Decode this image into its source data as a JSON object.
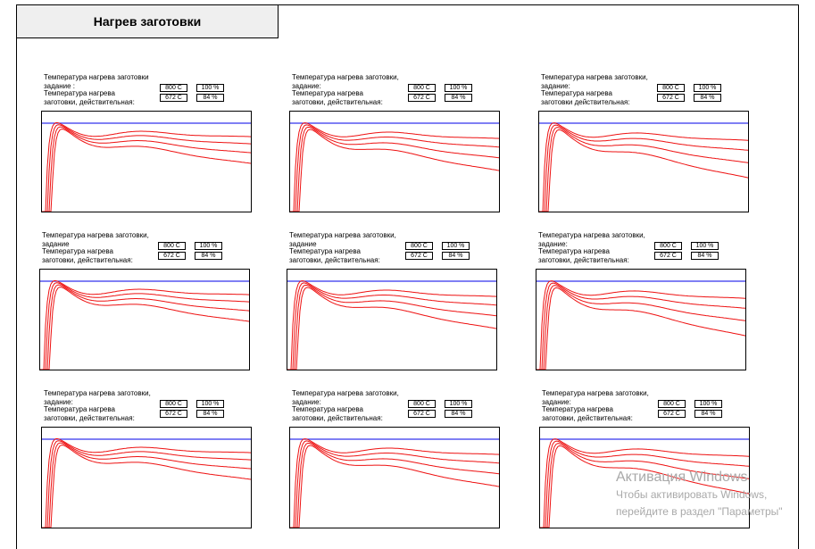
{
  "screen": {
    "title": "Нагрев заготовки"
  },
  "panels": [
    {
      "setpoint_label_line1": "Температура нагрева заготовки",
      "setpoint_label_line2": "задание :",
      "actual_label_line1": "Температура нагрева",
      "actual_label_line2": "заготовки, действительная:",
      "setpoint_value": "800 C",
      "setpoint_percent": "100 %",
      "actual_value": "672 C",
      "actual_percent": "84 %"
    },
    {
      "setpoint_label_line1": "Температура нагрева заготовки,",
      "setpoint_label_line2": "задание:",
      "actual_label_line1": "Температура нагрева",
      "actual_label_line2": "заготовки, действительная:",
      "setpoint_value": "800 C",
      "setpoint_percent": "100 %",
      "actual_value": "672 C",
      "actual_percent": "84 %"
    },
    {
      "setpoint_label_line1": "Температура нагрева заготовки,",
      "setpoint_label_line2": "задание:",
      "actual_label_line1": "Температура нагрева",
      "actual_label_line2": "заготовки  действительная:",
      "setpoint_value": "800 C",
      "setpoint_percent": "100 %",
      "actual_value": "672 C",
      "actual_percent": "84 %"
    },
    {
      "setpoint_label_line1": "Температура нагрева заготовки,",
      "setpoint_label_line2": "задание",
      "actual_label_line1": "Температура нагрева",
      "actual_label_line2": "заготовки, действительная:",
      "setpoint_value": "800 C",
      "setpoint_percent": "100 %",
      "actual_value": "672 C",
      "actual_percent": "84 %"
    },
    {
      "setpoint_label_line1": "Температура нагрева заготовки,",
      "setpoint_label_line2": "задание",
      "actual_label_line1": "Температура нагрева",
      "actual_label_line2": "заготовки, действительная:",
      "setpoint_value": "800 C",
      "setpoint_percent": "100 %",
      "actual_value": "672 C",
      "actual_percent": "84 %"
    },
    {
      "setpoint_label_line1": "Температура нагрева заготовки,",
      "setpoint_label_line2": "задание:",
      "actual_label_line1": "Температура нагрева",
      "actual_label_line2": "заготовки, действительная:",
      "setpoint_value": "800 C",
      "setpoint_percent": "100 %",
      "actual_value": "672 C",
      "actual_percent": "84 %"
    },
    {
      "setpoint_label_line1": "Температура нагрева заготовки,",
      "setpoint_label_line2": "задание:",
      "actual_label_line1": "Температура нагрева",
      "actual_label_line2": "заготовки, действительная:",
      "setpoint_value": "800 C",
      "setpoint_percent": "100 %",
      "actual_value": "672 C",
      "actual_percent": "84 %"
    },
    {
      "setpoint_label_line1": "Температура нагрева заготовки,",
      "setpoint_label_line2": "задание:",
      "actual_label_line1": "Температура нагрева",
      "actual_label_line2": "заготовки, действительная:",
      "setpoint_value": "800 C",
      "setpoint_percent": "100 %",
      "actual_value": "672 C",
      "actual_percent": "84 %"
    },
    {
      "setpoint_label_line1": "Температура нагрева заготовки,",
      "setpoint_label_line2": "задание:",
      "actual_label_line1": "Температура нагрева",
      "actual_label_line2": "заготовки, действительная:",
      "setpoint_value": "800 C",
      "setpoint_percent": "100 %",
      "actual_value": "672 C",
      "actual_percent": "84 %"
    }
  ],
  "trend": {
    "setpoint_color": "#3333ee",
    "actual_color": "#ee1111"
  },
  "watermark": {
    "line1": "Активация Windows",
    "line2": "Чтобы активировать Windows,",
    "line3": "перейдите в раздел \"Параметры\""
  }
}
